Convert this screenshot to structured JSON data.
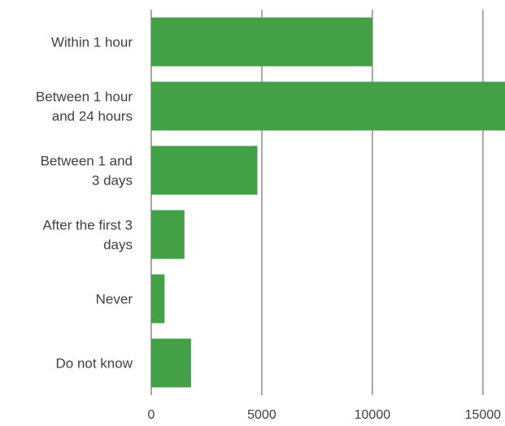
{
  "chart_data": {
    "type": "bar",
    "orientation": "horizontal",
    "categories": [
      [
        "Within 1 hour"
      ],
      [
        "Between 1 hour",
        "and 24 hours"
      ],
      [
        "Between 1 and",
        "3 days"
      ],
      [
        "After the first 3",
        "days"
      ],
      [
        "Never"
      ],
      [
        "Do not know"
      ]
    ],
    "values": [
      10000,
      16000,
      4800,
      1500,
      600,
      1800
    ],
    "xlim": [
      0,
      16000
    ],
    "xticks": [
      0,
      5000,
      10000,
      15000
    ],
    "xtick_labels": [
      "0",
      "5000",
      "10000",
      "15000"
    ],
    "grid": "vertical",
    "title": "",
    "xlabel": "",
    "ylabel": "",
    "colors": {
      "bar": "#43A047",
      "grid": "#A6A6A6",
      "text": "#404040"
    }
  }
}
